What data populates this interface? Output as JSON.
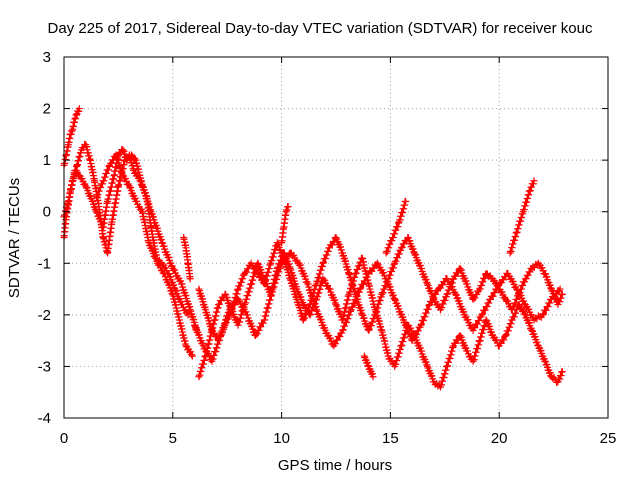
{
  "chart_data": {
    "type": "scatter",
    "title": "Day 225 of 2017, Sidereal Day-to-day VTEC variation (SDTVAR) for receiver kouc",
    "xlabel": "GPS time / hours",
    "ylabel": "SDTVAR / TECUs",
    "xlim": [
      0,
      25
    ],
    "ylim": [
      -4,
      3
    ],
    "xticks": [
      0,
      5,
      10,
      15,
      20,
      25
    ],
    "yticks": [
      -4,
      -3,
      -2,
      -1,
      0,
      1,
      2,
      3
    ],
    "grid": true,
    "marker": "+",
    "series": [
      {
        "name": "track-a",
        "color": "#ff0000",
        "x": [
          0.0,
          0.1,
          0.2,
          0.3,
          0.4,
          0.5,
          0.6,
          0.7
        ],
        "y": [
          0.9,
          1.1,
          1.3,
          1.5,
          1.6,
          1.8,
          1.9,
          2.0
        ]
      },
      {
        "name": "track-b",
        "color": "#ff0000",
        "x": [
          0.0,
          0.2,
          0.4,
          0.6,
          0.8,
          1.0,
          1.2,
          1.4,
          1.6,
          1.8,
          2.0,
          2.2,
          2.5,
          2.8,
          3.0,
          3.2,
          3.5,
          3.8,
          4.0,
          4.3,
          4.6,
          5.0,
          5.3,
          5.6,
          5.9
        ],
        "y": [
          -0.1,
          0.2,
          0.6,
          0.9,
          1.2,
          1.3,
          1.0,
          0.6,
          0.1,
          -0.5,
          -0.8,
          -0.2,
          0.5,
          1.0,
          1.1,
          0.8,
          0.6,
          0.3,
          -0.3,
          -1.0,
          -1.2,
          -1.6,
          -2.1,
          -2.6,
          -2.8
        ]
      },
      {
        "name": "track-c",
        "color": "#ff0000",
        "x": [
          0.0,
          0.1,
          0.3,
          0.5,
          0.7,
          1.0,
          1.3,
          1.5,
          1.8,
          2.0,
          2.3,
          2.5,
          2.7,
          2.9,
          3.1,
          3.3,
          3.6,
          4.0,
          4.5,
          5.0,
          5.4,
          5.8,
          6.1
        ],
        "y": [
          -0.5,
          -0.1,
          0.4,
          0.8,
          0.7,
          0.5,
          0.2,
          0.0,
          -0.3,
          0.2,
          0.7,
          1.1,
          1.2,
          1.0,
          1.1,
          1.0,
          0.5,
          0.0,
          -0.6,
          -1.1,
          -1.4,
          -1.9,
          -2.3
        ]
      },
      {
        "name": "track-d",
        "color": "#ff0000",
        "x": [
          1.5,
          1.8,
          2.1,
          2.4,
          2.7,
          3.0,
          3.3,
          3.6,
          3.9,
          4.2,
          4.5,
          4.8,
          5.1,
          5.4,
          5.7
        ],
        "y": [
          0.3,
          0.6,
          0.9,
          1.1,
          0.7,
          0.5,
          0.2,
          0.0,
          -0.6,
          -0.9,
          -1.0,
          -1.2,
          -1.5,
          -1.8,
          -2.0
        ]
      },
      {
        "name": "track-e",
        "color": "#ff0000",
        "x": [
          5.5,
          5.6,
          5.7,
          5.8
        ],
        "y": [
          -0.5,
          -0.7,
          -1.0,
          -1.3
        ]
      },
      {
        "name": "track-f",
        "color": "#ff0000",
        "x": [
          6.2,
          6.5,
          6.8,
          7.1,
          7.4,
          7.7,
          8.0,
          8.3,
          8.6,
          8.9,
          9.2,
          9.5,
          9.8,
          10.1,
          10.4,
          10.7,
          11.0,
          11.3,
          11.6,
          11.9,
          12.2,
          12.5,
          12.8,
          13.1,
          13.4,
          13.7,
          14.0,
          14.3,
          14.6,
          14.9,
          15.2,
          15.5,
          15.8,
          16.1,
          16.4,
          16.7,
          17.0,
          17.3,
          17.6,
          17.9,
          18.2,
          18.5,
          18.8,
          19.1,
          19.4,
          19.7,
          20.0,
          20.3,
          20.6,
          20.9,
          21.2,
          21.5,
          21.8,
          22.1,
          22.4,
          22.7,
          22.9
        ],
        "y": [
          -3.2,
          -2.8,
          -2.3,
          -1.8,
          -1.6,
          -1.9,
          -2.2,
          -1.8,
          -1.4,
          -1.0,
          -1.3,
          -1.6,
          -1.1,
          -0.8,
          -1.1,
          -1.5,
          -1.8,
          -2.0,
          -1.7,
          -1.3,
          -1.5,
          -1.8,
          -2.1,
          -1.6,
          -1.2,
          -0.9,
          -1.4,
          -1.9,
          -2.3,
          -2.8,
          -3.0,
          -2.6,
          -2.2,
          -2.4,
          -2.7,
          -3.0,
          -3.3,
          -3.4,
          -3.0,
          -2.6,
          -2.4,
          -2.7,
          -2.9,
          -2.5,
          -2.1,
          -2.4,
          -2.6,
          -2.4,
          -2.1,
          -1.8,
          -2.0,
          -2.3,
          -2.6,
          -2.9,
          -3.2,
          -3.3,
          -3.1
        ]
      },
      {
        "name": "track-g",
        "color": "#ff0000",
        "x": [
          6.2,
          6.5,
          6.8,
          7.1,
          7.4,
          7.7,
          8.0,
          8.3,
          8.6,
          8.9,
          9.2,
          9.5,
          9.8,
          10.1,
          10.4,
          10.7,
          11.0,
          11.3,
          11.6,
          11.9,
          12.2,
          12.5,
          12.8,
          13.1,
          13.4,
          13.7,
          14.0,
          14.3,
          14.6,
          14.9,
          15.2,
          15.5,
          15.8,
          16.1,
          16.4,
          16.7,
          17.0,
          17.3,
          17.6,
          17.9,
          18.2,
          18.5,
          18.8,
          19.1,
          19.4,
          19.7,
          20.0,
          20.3,
          20.6,
          20.9,
          21.2,
          21.5,
          21.8,
          22.1,
          22.4,
          22.7,
          22.9
        ],
        "y": [
          -1.5,
          -1.9,
          -2.3,
          -2.5,
          -2.2,
          -1.9,
          -1.5,
          -1.2,
          -1.0,
          -1.2,
          -1.4,
          -1.0,
          -0.6,
          -0.9,
          -1.3,
          -1.7,
          -2.1,
          -1.8,
          -1.4,
          -1.0,
          -0.7,
          -0.5,
          -0.8,
          -1.2,
          -1.6,
          -2.0,
          -2.3,
          -2.0,
          -1.6,
          -1.3,
          -1.0,
          -0.7,
          -0.5,
          -0.8,
          -1.1,
          -1.4,
          -1.7,
          -1.9,
          -1.6,
          -1.3,
          -1.1,
          -1.4,
          -1.7,
          -1.5,
          -1.2,
          -1.3,
          -1.5,
          -1.7,
          -1.9,
          -1.6,
          -1.3,
          -1.1,
          -1.0,
          -1.2,
          -1.5,
          -1.8,
          -1.6
        ]
      },
      {
        "name": "track-h",
        "color": "#ff0000",
        "x": [
          6.0,
          6.4,
          6.8,
          7.2,
          7.6,
          8.0,
          8.4,
          8.8,
          9.2,
          9.6,
          10.0,
          10.4,
          10.8,
          11.2,
          11.6,
          12.0,
          12.4,
          12.8,
          13.2,
          13.6,
          14.0,
          14.4,
          14.8,
          15.2,
          15.6,
          16.0,
          16.4,
          16.8,
          17.2,
          17.6,
          18.0,
          18.4,
          18.8,
          19.2,
          19.6,
          20.0,
          20.4,
          20.8,
          21.2,
          21.6,
          22.0,
          22.4,
          22.8
        ],
        "y": [
          -2.2,
          -2.6,
          -2.9,
          -2.4,
          -1.9,
          -1.7,
          -2.0,
          -2.4,
          -2.1,
          -1.5,
          -1.0,
          -0.8,
          -1.0,
          -1.4,
          -1.9,
          -2.3,
          -2.6,
          -2.3,
          -1.9,
          -1.5,
          -1.2,
          -1.0,
          -1.3,
          -1.7,
          -2.1,
          -2.5,
          -2.2,
          -1.8,
          -1.5,
          -1.3,
          -1.6,
          -2.0,
          -2.3,
          -2.0,
          -1.7,
          -1.4,
          -1.2,
          -1.5,
          -1.8,
          -2.1,
          -2.0,
          -1.7,
          -1.5
        ]
      },
      {
        "name": "track-i",
        "color": "#ff0000",
        "x": [
          10.0,
          10.1,
          10.2,
          10.3
        ],
        "y": [
          -0.6,
          -0.3,
          0.0,
          0.1
        ]
      },
      {
        "name": "track-j",
        "color": "#ff0000",
        "x": [
          14.8,
          15.1,
          15.4,
          15.7
        ],
        "y": [
          -0.8,
          -0.5,
          -0.2,
          0.2
        ]
      },
      {
        "name": "track-k",
        "color": "#ff0000",
        "x": [
          20.5,
          20.8,
          21.1,
          21.4,
          21.6
        ],
        "y": [
          -0.8,
          -0.4,
          0.0,
          0.4,
          0.6
        ]
      },
      {
        "name": "track-l",
        "color": "#ff0000",
        "x": [
          13.8,
          14.0,
          14.2
        ],
        "y": [
          -2.8,
          -3.0,
          -3.2
        ]
      }
    ]
  }
}
